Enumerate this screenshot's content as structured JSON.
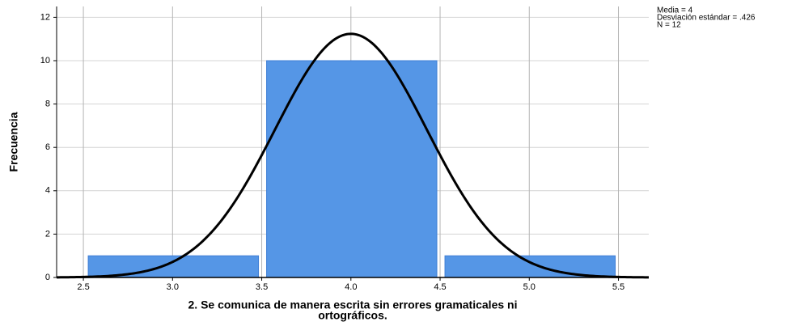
{
  "chart_data": {
    "type": "histogram",
    "bins": [
      2.5,
      3.5,
      4.5,
      5.5
    ],
    "counts": [
      1,
      10,
      1
    ],
    "color": "#5596e6",
    "normal_curve": {
      "mean": 4,
      "sd": 0.426,
      "n": 12,
      "color": "#000000"
    },
    "xlim": [
      2.35,
      5.67
    ],
    "ylim": [
      0,
      12.5
    ],
    "xticks": [
      2.5,
      {
        "value": 3,
        "label": "3.0"
      },
      3.5,
      {
        "value": 4,
        "label": "4.0"
      },
      4.5,
      {
        "value": 5,
        "label": "5.0"
      },
      5.5
    ],
    "yticks": [
      0,
      2,
      4,
      6,
      8,
      10,
      12
    ],
    "grid": true,
    "ylabel": "Frecuencia",
    "xlabel": [
      "2. Se comunica de manera escrita sin errores gramaticales ni",
      "ortográficos."
    ],
    "annotations": [
      "Media = 4",
      "Desviación estándar = .426",
      "N = 12"
    ]
  }
}
